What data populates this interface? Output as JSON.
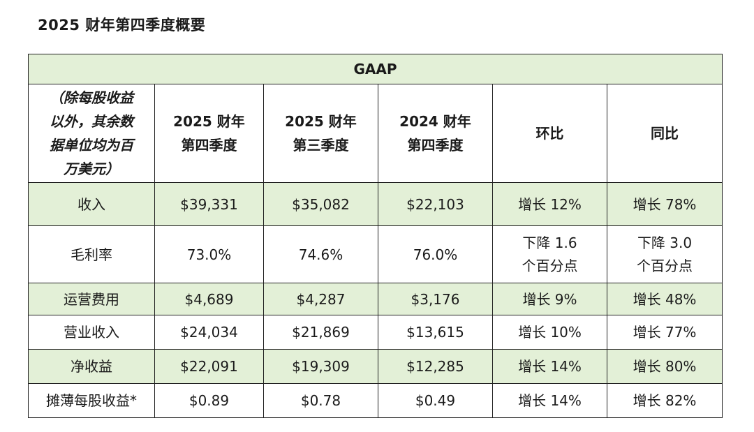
{
  "title": "2025 财年第四季度概要",
  "table": {
    "group_header": "GAAP",
    "unit_note_lines": [
      "（除每股收益",
      "以外，其余数",
      "据单位均为百",
      "万美元）"
    ],
    "columns": [
      {
        "lines": [
          "2025 财年",
          "第四季度"
        ]
      },
      {
        "lines": [
          "2025 财年",
          "第三季度"
        ]
      },
      {
        "lines": [
          "2024 财年",
          "第四季度"
        ]
      },
      {
        "lines": [
          "环比"
        ]
      },
      {
        "lines": [
          "同比"
        ]
      }
    ],
    "rows": [
      {
        "label": "收入",
        "values": [
          "$39,331",
          "$35,082",
          "$22,103"
        ],
        "qoq": [
          "增长 12%"
        ],
        "yoy": [
          "增长 78%"
        ]
      },
      {
        "label": "毛利率",
        "values": [
          "73.0%",
          "74.6%",
          "76.0%"
        ],
        "qoq": [
          "下降 1.6",
          "个百分点"
        ],
        "yoy": [
          "下降 3.0",
          "个百分点"
        ]
      },
      {
        "label": "运营费用",
        "values": [
          "$4,689",
          "$4,287",
          "$3,176"
        ],
        "qoq": [
          "增长 9%"
        ],
        "yoy": [
          "增长 48%"
        ]
      },
      {
        "label": "营业收入",
        "values": [
          "$24,034",
          "$21,869",
          "$13,615"
        ],
        "qoq": [
          "增长 10%"
        ],
        "yoy": [
          "增长 77%"
        ]
      },
      {
        "label": "净收益",
        "values": [
          "$22,091",
          "$19,309",
          "$12,285"
        ],
        "qoq": [
          "增长 14%"
        ],
        "yoy": [
          "增长 80%"
        ]
      },
      {
        "label": "摊薄每股收益*",
        "values": [
          "$0.89",
          "$0.78",
          "$0.49"
        ],
        "qoq": [
          "增长 14%"
        ],
        "yoy": [
          "增长 82%"
        ]
      }
    ]
  },
  "colors": {
    "band_green": "#e3f0d7",
    "border": "#222222"
  }
}
